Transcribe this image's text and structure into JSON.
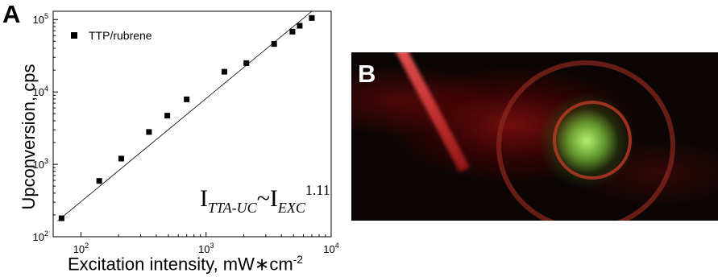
{
  "chart_data": {
    "panel_label": "A",
    "type": "scatter",
    "xlabel": "Excitation intensity, mW∗cm",
    "xlabel_sup": "-2",
    "ylabel": "Upconversion, cps",
    "x_scale": "log",
    "y_scale": "log",
    "xlim": [
      60,
      10000
    ],
    "ylim": [
      100,
      130000
    ],
    "x_ticks": [
      {
        "value": 100,
        "base": "10",
        "exp": "2"
      },
      {
        "value": 1000,
        "base": "10",
        "exp": "3"
      },
      {
        "value": 10000,
        "base": "10",
        "exp": "4"
      }
    ],
    "y_ticks": [
      {
        "value": 100,
        "base": "10",
        "exp": "2"
      },
      {
        "value": 1000,
        "base": "10",
        "exp": "3"
      },
      {
        "value": 10000,
        "base": "10",
        "exp": "4"
      },
      {
        "value": 100000,
        "base": "10",
        "exp": "5"
      }
    ],
    "legend": {
      "label": "TTP/rubrene",
      "position": "top-left"
    },
    "series": [
      {
        "name": "TTP/rubrene",
        "marker": "square",
        "x": [
          70,
          140,
          210,
          350,
          490,
          700,
          1400,
          2100,
          3500,
          4900,
          5600,
          7000
        ],
        "y": [
          180,
          590,
          1200,
          2800,
          4700,
          7900,
          19000,
          25000,
          46000,
          68000,
          82000,
          105000
        ]
      }
    ],
    "fit": {
      "exponent": 1.11,
      "x": [
        65,
        7000
      ],
      "y": [
        165,
        130000
      ]
    },
    "annotation": {
      "I": "I",
      "sub1": "TTA-UC",
      "tilde": "~",
      "sub2": "EXC",
      "sup": "1.11"
    }
  },
  "photo": {
    "panel_label": "B"
  }
}
